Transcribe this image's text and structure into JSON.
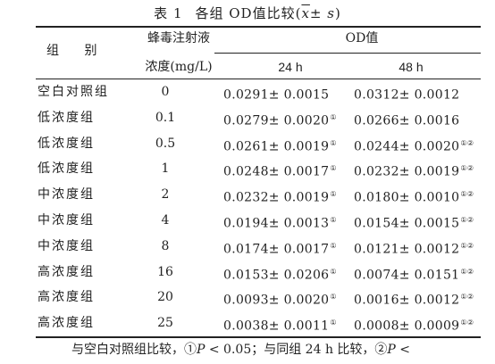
{
  "caption": {
    "table_label": "表 1",
    "title_prefix": "各组 OD值比较(",
    "title_xbar": "x",
    "title_pm": "± ",
    "title_s": "s",
    "title_suffix": ")"
  },
  "header": {
    "group": "组 别",
    "concentration_line1": "蜂毒注射液",
    "concentration_line2": "浓度(mg/L)",
    "od_value": "OD值",
    "col_24h": "24 h",
    "col_48h": "48 h"
  },
  "rows": [
    {
      "group": "空白对照组",
      "conc": "0",
      "h24": "0.0291± 0.0015",
      "h24_mark": "",
      "h48": "0.0312± 0.0012",
      "h48_mark": ""
    },
    {
      "group": "低浓度组",
      "conc": "0.1",
      "h24": "0.0279± 0.0020",
      "h24_mark": "①",
      "h48": "0.0266± 0.0016",
      "h48_mark": ""
    },
    {
      "group": "低浓度组",
      "conc": "0.5",
      "h24": "0.0261± 0.0019",
      "h24_mark": "①",
      "h48": "0.0244± 0.0020",
      "h48_mark": "①②"
    },
    {
      "group": "低浓度组",
      "conc": "1",
      "h24": "0.0248± 0.0017",
      "h24_mark": "①",
      "h48": "0.0232± 0.0019",
      "h48_mark": "①②"
    },
    {
      "group": "中浓度组",
      "conc": "2",
      "h24": "0.0232± 0.0019",
      "h24_mark": "①",
      "h48": "0.0180± 0.0010",
      "h48_mark": "①②"
    },
    {
      "group": "中浓度组",
      "conc": "4",
      "h24": "0.0194± 0.0013",
      "h24_mark": "①",
      "h48": "0.0154± 0.0015",
      "h48_mark": "①②"
    },
    {
      "group": "中浓度组",
      "conc": "8",
      "h24": "0.0174± 0.0017",
      "h24_mark": "①",
      "h48": "0.0121± 0.0012",
      "h48_mark": "①②"
    },
    {
      "group": "高浓度组",
      "conc": "16",
      "h24": "0.0153± 0.0206",
      "h24_mark": "①",
      "h48": "0.0074± 0.0151",
      "h48_mark": "①②"
    },
    {
      "group": "高浓度组",
      "conc": "20",
      "h24": "0.0093± 0.0020",
      "h24_mark": "①",
      "h48": "0.0016± 0.0012",
      "h48_mark": "①②"
    },
    {
      "group": "高浓度组",
      "conc": "25",
      "h24": "0.0038± 0.0011",
      "h24_mark": "①",
      "h48": "0.0008± 0.0009",
      "h48_mark": "①②"
    }
  ],
  "footnote": {
    "part1": "与空白对照组比较，①",
    "p1": "P",
    "part2": " < 0.05；与同组 24 h 比较，②",
    "p2": "P",
    "part3": " <"
  }
}
